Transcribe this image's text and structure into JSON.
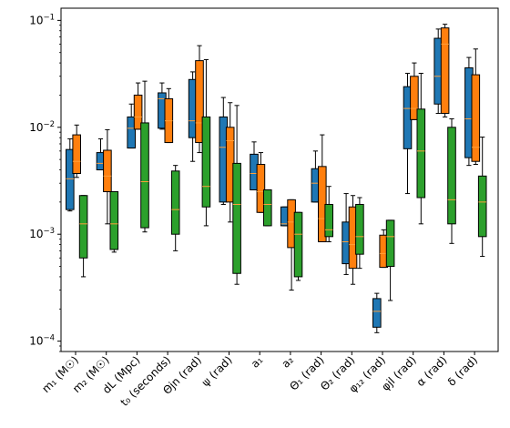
{
  "chart_data": {
    "type": "box",
    "title": "",
    "xlabel": "",
    "ylabel": "",
    "yscale": "log",
    "ylim": [
      8e-05,
      0.13
    ],
    "yticks": [
      {
        "value": 0.0001,
        "base": "10",
        "exp": "−4"
      },
      {
        "value": 0.001,
        "base": "10",
        "exp": "−3"
      },
      {
        "value": 0.01,
        "base": "10",
        "exp": "−2"
      },
      {
        "value": 0.1,
        "base": "10",
        "exp": "−1"
      }
    ],
    "categories": [
      {
        "label": "m₁ (M☉)"
      },
      {
        "label": "m₂ (M☉)"
      },
      {
        "label": "dL (Mpc)"
      },
      {
        "label": "t₀ (seconds)"
      },
      {
        "label": "Θjn (rad)"
      },
      {
        "label": "ψ (rad)"
      },
      {
        "label": "a₁"
      },
      {
        "label": "a₂"
      },
      {
        "label": "Θ₁ (rad)"
      },
      {
        "label": "Θ₂ (rad)"
      },
      {
        "label": "φ₁₂ (rad)"
      },
      {
        "label": "φjl (rad)"
      },
      {
        "label": "α (rad)"
      },
      {
        "label": "δ (rad)"
      }
    ],
    "series": [
      {
        "color": "#1f77b4",
        "boxes": [
          {
            "wlo": 0.00165,
            "q1": 0.0017,
            "med": 0.0033,
            "q3": 0.0062,
            "whi": 0.0078
          },
          {
            "wlo": 0.004,
            "q1": 0.004,
            "med": 0.0046,
            "q3": 0.0058,
            "whi": 0.0078
          },
          {
            "wlo": 0.0064,
            "q1": 0.0064,
            "med": 0.0098,
            "q3": 0.0125,
            "whi": 0.0165
          },
          {
            "wlo": 0.0096,
            "q1": 0.0098,
            "med": 0.0185,
            "q3": 0.021,
            "whi": 0.026
          },
          {
            "wlo": 0.0048,
            "q1": 0.008,
            "med": 0.0115,
            "q3": 0.028,
            "whi": 0.033
          },
          {
            "wlo": 0.0019,
            "q1": 0.002,
            "med": 0.0065,
            "q3": 0.0125,
            "whi": 0.019
          },
          {
            "wlo": 0.0026,
            "q1": 0.0026,
            "med": 0.0037,
            "q3": 0.0056,
            "whi": 0.0073
          },
          {
            "wlo": 0.0012,
            "q1": 0.0012,
            "med": 0.00125,
            "q3": 0.0018,
            "whi": 0.0018
          },
          {
            "wlo": 0.002,
            "q1": 0.002,
            "med": 0.003,
            "q3": 0.0041,
            "whi": 0.006
          },
          {
            "wlo": 0.00042,
            "q1": 0.00053,
            "med": 0.00085,
            "q3": 0.0013,
            "whi": 0.0024
          },
          {
            "wlo": 0.00012,
            "q1": 0.000135,
            "med": 0.00019,
            "q3": 0.00025,
            "whi": 0.00028
          },
          {
            "wlo": 0.0024,
            "q1": 0.0063,
            "med": 0.015,
            "q3": 0.024,
            "whi": 0.032
          },
          {
            "wlo": 0.0135,
            "q1": 0.0165,
            "med": 0.03,
            "q3": 0.068,
            "whi": 0.083
          },
          {
            "wlo": 0.0044,
            "q1": 0.0052,
            "med": 0.012,
            "q3": 0.036,
            "whi": 0.045
          }
        ]
      },
      {
        "color": "#ff7f0e",
        "boxes": [
          {
            "wlo": 0.0034,
            "q1": 0.0037,
            "med": 0.0048,
            "q3": 0.0085,
            "whi": 0.0105
          },
          {
            "wlo": 0.00125,
            "q1": 0.0025,
            "med": 0.0035,
            "q3": 0.0061,
            "whi": 0.0095
          },
          {
            "wlo": 0.0096,
            "q1": 0.0096,
            "med": 0.0125,
            "q3": 0.02,
            "whi": 0.026
          },
          {
            "wlo": 0.0072,
            "q1": 0.0072,
            "med": 0.0115,
            "q3": 0.0185,
            "whi": 0.023
          },
          {
            "wlo": 0.0058,
            "q1": 0.0072,
            "med": 0.011,
            "q3": 0.042,
            "whi": 0.058
          },
          {
            "wlo": 0.0013,
            "q1": 0.002,
            "med": 0.0075,
            "q3": 0.01,
            "whi": 0.017
          },
          {
            "wlo": 0.0016,
            "q1": 0.0016,
            "med": 0.0025,
            "q3": 0.0045,
            "whi": 0.0058
          },
          {
            "wlo": 0.0003,
            "q1": 0.00075,
            "med": 0.0013,
            "q3": 0.0021,
            "whi": 0.0021
          },
          {
            "wlo": 0.00085,
            "q1": 0.00085,
            "med": 0.0014,
            "q3": 0.0043,
            "whi": 0.0085
          },
          {
            "wlo": 0.00034,
            "q1": 0.00048,
            "med": 0.0008,
            "q3": 0.0018,
            "whi": 0.0023
          },
          {
            "wlo": 0.00049,
            "q1": 0.00049,
            "med": 0.00066,
            "q3": 0.00098,
            "whi": 0.0011
          },
          {
            "wlo": 0.0118,
            "q1": 0.0118,
            "med": 0.015,
            "q3": 0.03,
            "whi": 0.04
          },
          {
            "wlo": 0.0125,
            "q1": 0.0135,
            "med": 0.06,
            "q3": 0.085,
            "whi": 0.092
          },
          {
            "wlo": 0.0045,
            "q1": 0.0048,
            "med": 0.0065,
            "q3": 0.031,
            "whi": 0.054
          }
        ]
      },
      {
        "color": "#2ca02c",
        "boxes": [
          {
            "wlo": 0.0004,
            "q1": 0.0006,
            "med": 0.00125,
            "q3": 0.0023,
            "whi": 0.0023
          },
          {
            "wlo": 0.00068,
            "q1": 0.00072,
            "med": 0.00125,
            "q3": 0.0025,
            "whi": 0.0025
          },
          {
            "wlo": 0.00105,
            "q1": 0.00115,
            "med": 0.0031,
            "q3": 0.011,
            "whi": 0.027
          },
          {
            "wlo": 0.0007,
            "q1": 0.001,
            "med": 0.0017,
            "q3": 0.0039,
            "whi": 0.0044
          },
          {
            "wlo": 0.0012,
            "q1": 0.0018,
            "med": 0.0028,
            "q3": 0.0125,
            "whi": 0.043
          },
          {
            "wlo": 0.00034,
            "q1": 0.00043,
            "med": 0.0019,
            "q3": 0.0046,
            "whi": 0.016
          },
          {
            "wlo": 0.0012,
            "q1": 0.0012,
            "med": 0.0019,
            "q3": 0.0026,
            "whi": 0.0026
          },
          {
            "wlo": 0.00037,
            "q1": 0.0004,
            "med": 0.001,
            "q3": 0.0016,
            "whi": 0.0016
          },
          {
            "wlo": 0.00085,
            "q1": 0.00095,
            "med": 0.0011,
            "q3": 0.0019,
            "whi": 0.0028
          },
          {
            "wlo": 0.00048,
            "q1": 0.00065,
            "med": 0.00095,
            "q3": 0.0019,
            "whi": 0.0022
          },
          {
            "wlo": 0.00024,
            "q1": 0.0005,
            "med": 0.00095,
            "q3": 0.00135,
            "whi": 0.00135
          },
          {
            "wlo": 0.00125,
            "q1": 0.0022,
            "med": 0.006,
            "q3": 0.0148,
            "whi": 0.032
          },
          {
            "wlo": 0.00082,
            "q1": 0.00125,
            "med": 0.0021,
            "q3": 0.01,
            "whi": 0.012
          },
          {
            "wlo": 0.00062,
            "q1": 0.00095,
            "med": 0.002,
            "q3": 0.0035,
            "whi": 0.0081
          }
        ]
      }
    ]
  }
}
